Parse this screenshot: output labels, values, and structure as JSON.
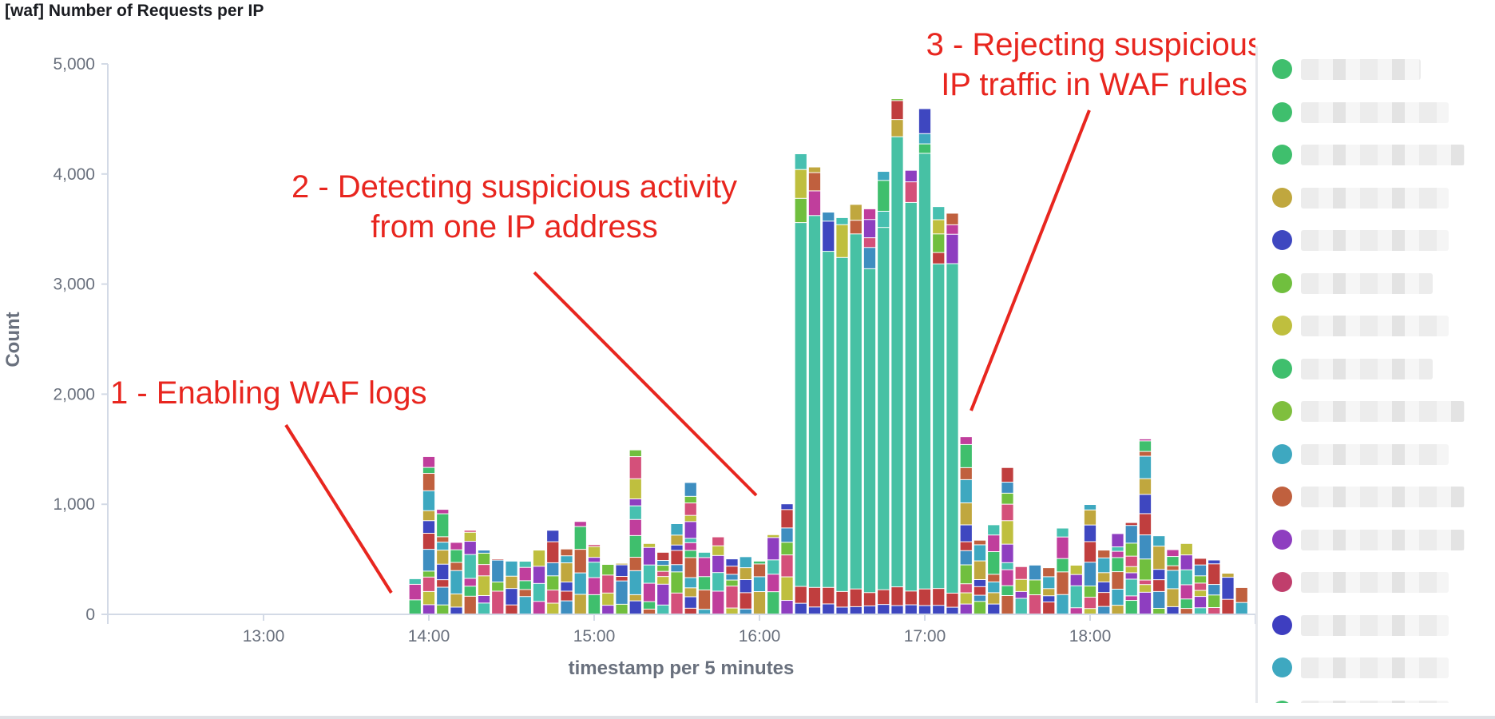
{
  "panel": {
    "title": "[waf] Number of Requests per IP"
  },
  "chart_data": {
    "type": "bar",
    "stacked": true,
    "title": "[waf] Number of Requests per IP",
    "xlabel": "timestamp per 5 minutes",
    "ylabel": "Count",
    "ylim": [
      0,
      5000
    ],
    "yticks": [
      0,
      1000,
      2000,
      3000,
      4000,
      5000
    ],
    "ytick_labels": [
      "0",
      "1,000",
      "2,000",
      "3,000",
      "4,000",
      "5,000"
    ],
    "x_start": "13:55",
    "x_interval_minutes": 5,
    "xticks": [
      "13:00",
      "14:00",
      "15:00",
      "16:00",
      "17:00",
      "18:00"
    ],
    "grid": false,
    "legend": "right",
    "totals": [
      320,
      1430,
      950,
      650,
      760,
      580,
      500,
      480,
      480,
      580,
      760,
      590,
      840,
      630,
      450,
      460,
      1490,
      640,
      560,
      820,
      1200,
      560,
      700,
      500,
      520,
      480,
      720,
      1000,
      4180,
      4060,
      3650,
      3600,
      3720,
      3680,
      4020,
      4680,
      4030,
      4590,
      3700,
      3640,
      1610,
      670,
      810,
      1330,
      430,
      450,
      420,
      780,
      450,
      1000,
      580,
      730,
      830,
      1590,
      710,
      590,
      640,
      510,
      490,
      370,
      240
    ],
    "annotations": [
      {
        "lines": [
          "1 - Enabling WAF logs"
        ]
      },
      {
        "lines": [
          "2 - Detecting suspicious activity",
          "from one IP address"
        ]
      },
      {
        "lines": [
          "3 - Rejecting suspicious",
          "IP traffic in WAF rules"
        ]
      }
    ]
  },
  "legend": {
    "items": [
      {
        "color": "#3fbf6d",
        "label": ""
      },
      {
        "color": "#3fbf6d",
        "label": ""
      },
      {
        "color": "#3fbf6d",
        "label": ""
      },
      {
        "color": "#c0a73e",
        "label": ""
      },
      {
        "color": "#3e47c0",
        "label": ""
      },
      {
        "color": "#70bf3e",
        "label": ""
      },
      {
        "color": "#bfbf3e",
        "label": ""
      },
      {
        "color": "#3fbf6d",
        "label": ""
      },
      {
        "color": "#7fbf3e",
        "label": ""
      },
      {
        "color": "#3ea8c0",
        "label": ""
      },
      {
        "color": "#c0603e",
        "label": ""
      },
      {
        "color": "#8e3ec0",
        "label": ""
      },
      {
        "color": "#c03e6c",
        "label": ""
      },
      {
        "color": "#3e3ec0",
        "label": ""
      },
      {
        "color": "#3ea8c0",
        "label": ""
      },
      {
        "color": "#3fbf6d",
        "label": ""
      }
    ]
  },
  "palette": [
    "#3fbf6d",
    "#c03e3e",
    "#8e3ec0",
    "#3ea8c0",
    "#70bf3e",
    "#c03e9c",
    "#3e47c0",
    "#bfbf3e",
    "#c0603e",
    "#3e8ec0",
    "#47c0b0",
    "#c0a73e",
    "#d4507a"
  ],
  "dominant_color": "#47c1a4"
}
